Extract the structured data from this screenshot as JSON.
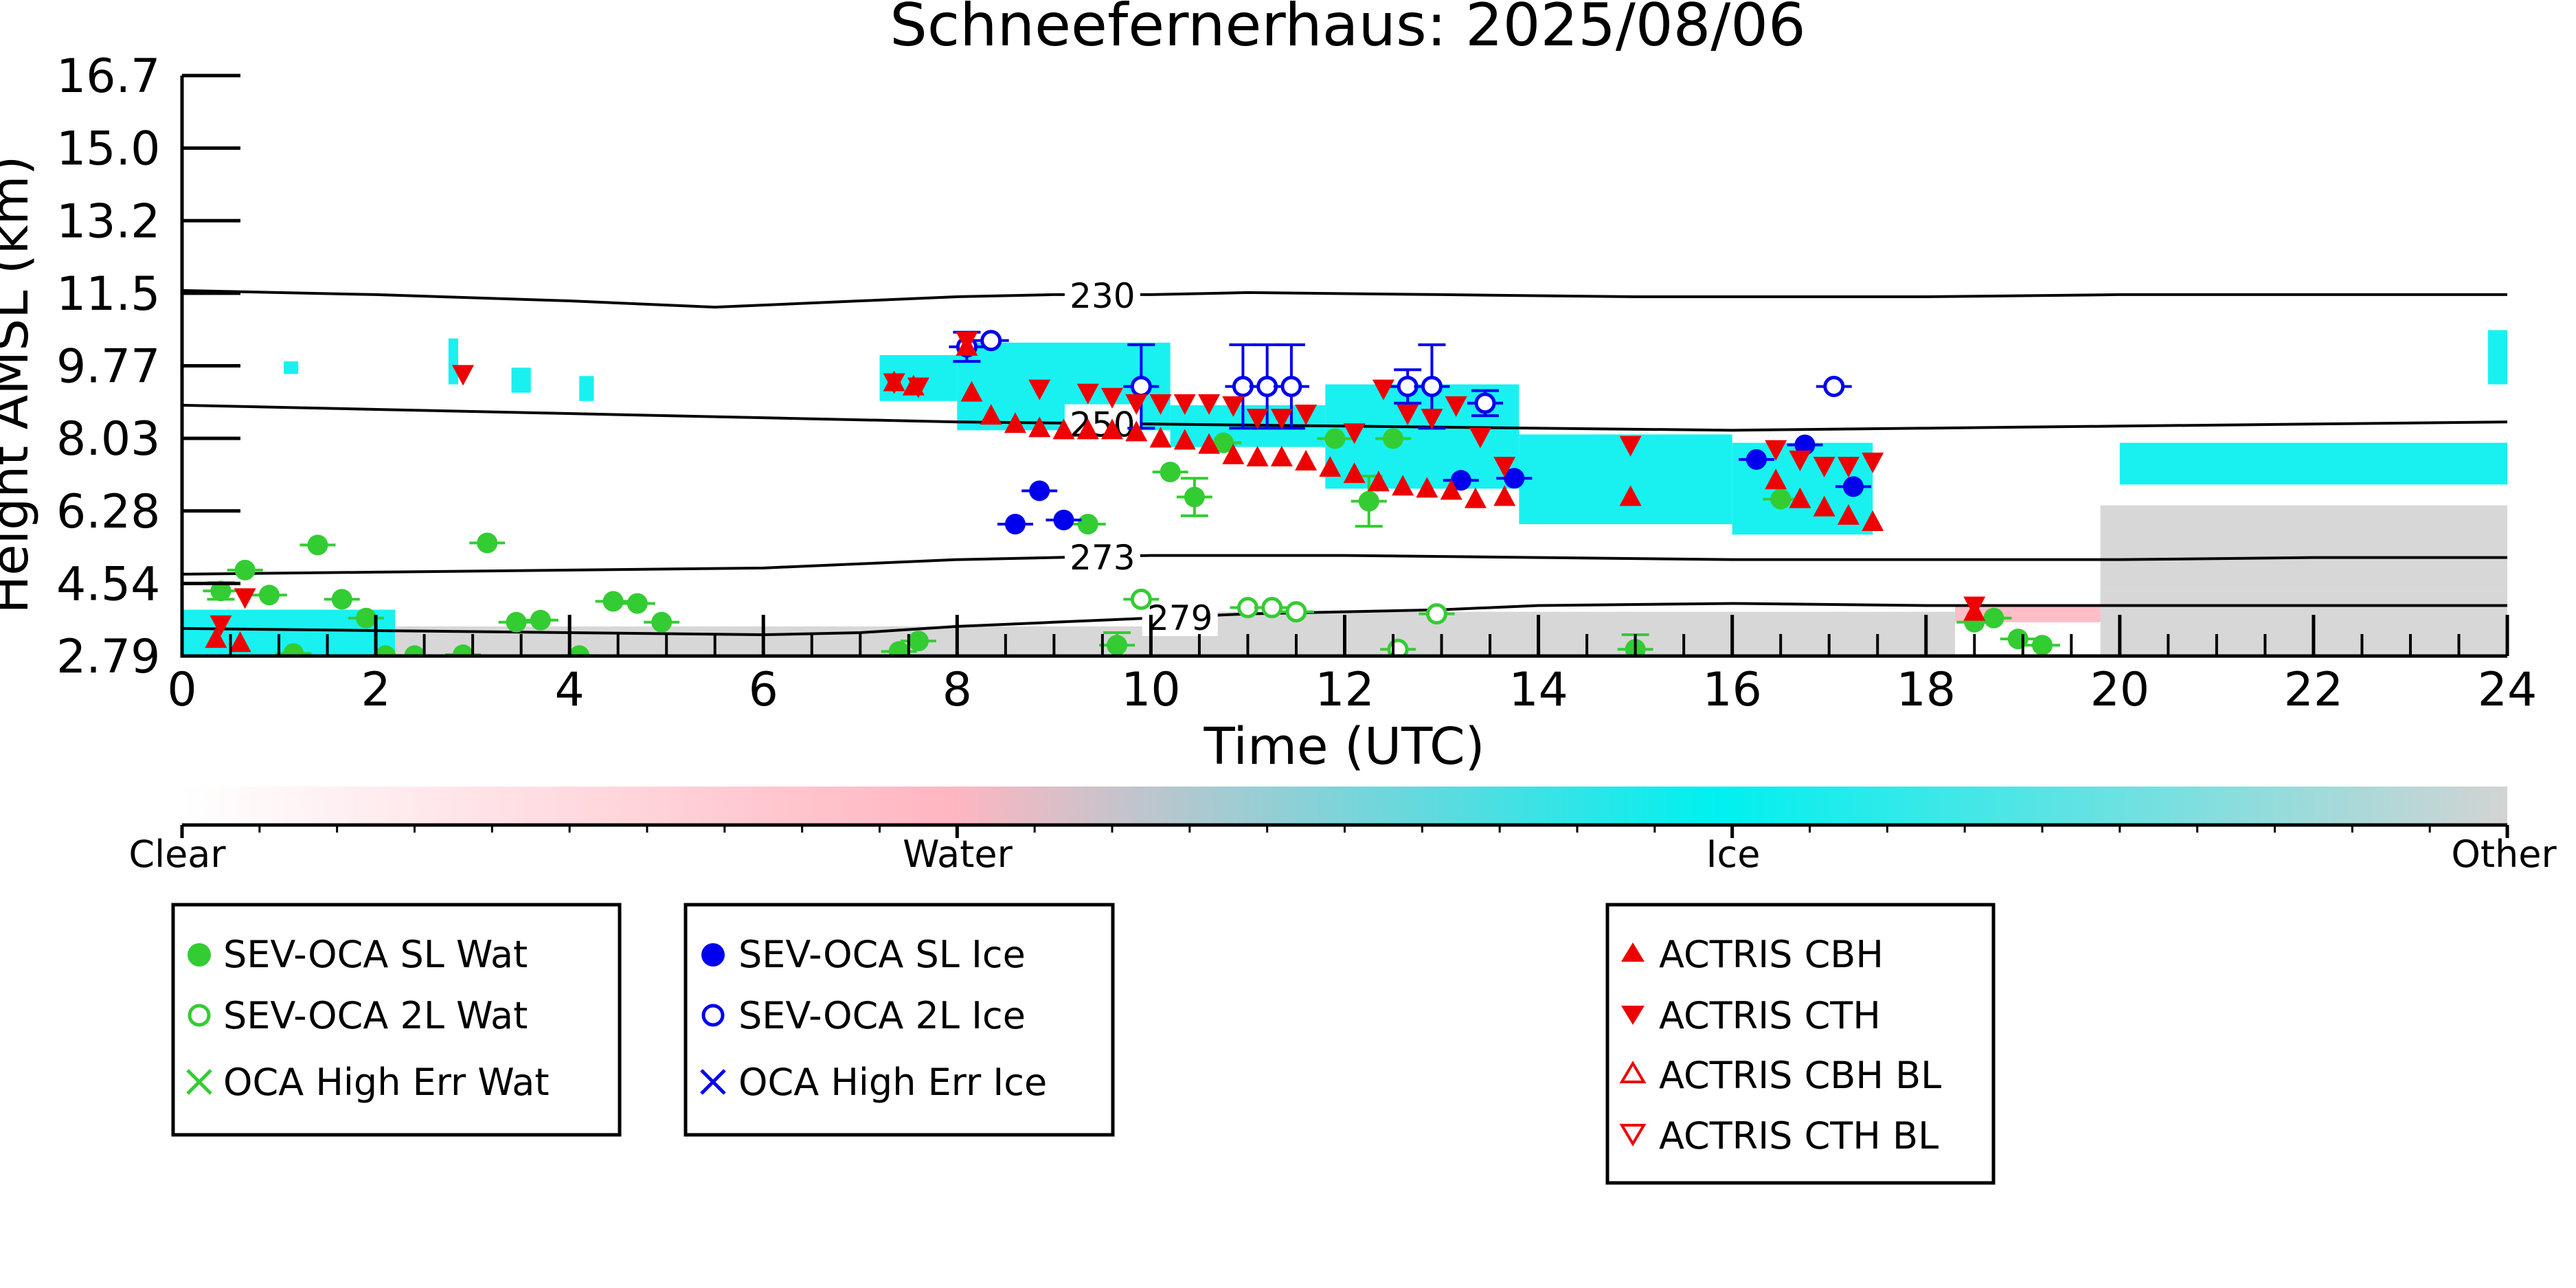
{
  "chart_data": {
    "type": "scatter",
    "title": "Schneefernerhaus: 2025/08/06",
    "xlabel": "Time (UTC)",
    "ylabel": "Height AMSL (km)",
    "xlim": [
      0,
      24
    ],
    "ylim": [
      2.79,
      16.7
    ],
    "x_ticks": [
      "0",
      "2",
      "4",
      "6",
      "8",
      "10",
      "12",
      "14",
      "16",
      "18",
      "20",
      "22",
      "24"
    ],
    "y_ticks": [
      "2.79",
      "4.54",
      "6.28",
      "8.03",
      "9.77",
      "11.5",
      "13.2",
      "15.0",
      "16.7"
    ],
    "grid": false,
    "contours": [
      {
        "label": "230",
        "label_x": 9.5,
        "points": [
          [
            0,
            11.55
          ],
          [
            2,
            11.45
          ],
          [
            4,
            11.3
          ],
          [
            5,
            11.2
          ],
          [
            5.5,
            11.15
          ],
          [
            7,
            11.3
          ],
          [
            8,
            11.4
          ],
          [
            9,
            11.45
          ],
          [
            10,
            11.45
          ],
          [
            11,
            11.5
          ],
          [
            13,
            11.45
          ],
          [
            15,
            11.4
          ],
          [
            18,
            11.4
          ],
          [
            20,
            11.45
          ],
          [
            24,
            11.45
          ]
        ]
      },
      {
        "label": "250",
        "label_x": 9.5,
        "points": [
          [
            0,
            8.8
          ],
          [
            2,
            8.7
          ],
          [
            4,
            8.6
          ],
          [
            6,
            8.5
          ],
          [
            8,
            8.4
          ],
          [
            10,
            8.35
          ],
          [
            12,
            8.3
          ],
          [
            14,
            8.25
          ],
          [
            16,
            8.2
          ],
          [
            18,
            8.25
          ],
          [
            20,
            8.3
          ],
          [
            22,
            8.35
          ],
          [
            24,
            8.4
          ]
        ]
      },
      {
        "label": "273",
        "label_x": 9.5,
        "points": [
          [
            0,
            4.75
          ],
          [
            2,
            4.8
          ],
          [
            4,
            4.85
          ],
          [
            6,
            4.9
          ],
          [
            7,
            5.0
          ],
          [
            8,
            5.1
          ],
          [
            9,
            5.15
          ],
          [
            10,
            5.2
          ],
          [
            12,
            5.2
          ],
          [
            14,
            5.15
          ],
          [
            16,
            5.1
          ],
          [
            18,
            5.1
          ],
          [
            20,
            5.1
          ],
          [
            22,
            5.15
          ],
          [
            24,
            5.15
          ]
        ]
      },
      {
        "label": "279",
        "label_x": 10.3,
        "points": [
          [
            0,
            3.45
          ],
          [
            2,
            3.4
          ],
          [
            4,
            3.35
          ],
          [
            6,
            3.3
          ],
          [
            7,
            3.35
          ],
          [
            8,
            3.5
          ],
          [
            9,
            3.6
          ],
          [
            10,
            3.7
          ],
          [
            11,
            3.8
          ],
          [
            12,
            3.85
          ],
          [
            13,
            3.9
          ],
          [
            14,
            4.0
          ],
          [
            16,
            4.05
          ],
          [
            18,
            4.0
          ],
          [
            20,
            4.0
          ],
          [
            22,
            4.0
          ],
          [
            24,
            4.0
          ]
        ]
      }
    ],
    "categorize_colorbar": {
      "labels": [
        "Clear",
        "Water",
        "Ice",
        "Other"
      ],
      "colors": [
        "#ffffff",
        "#ffb6c1",
        "#00f0f0",
        "#d3d3d3"
      ]
    },
    "legends": [
      {
        "entries": [
          {
            "label": "SEV-OCA SL Wat",
            "marker": "filled-circle",
            "color": "#33cc33"
          },
          {
            "label": "SEV-OCA 2L Wat",
            "marker": "open-circle",
            "color": "#33cc33"
          },
          {
            "label": "OCA High Err Wat",
            "marker": "x",
            "color": "#33cc33"
          }
        ]
      },
      {
        "entries": [
          {
            "label": "SEV-OCA SL Ice",
            "marker": "filled-circle",
            "color": "#0000ee"
          },
          {
            "label": "SEV-OCA 2L Ice",
            "marker": "open-circle",
            "color": "#0000ee"
          },
          {
            "label": "OCA High Err Ice",
            "marker": "x",
            "color": "#0000ee"
          }
        ]
      },
      {
        "entries": [
          {
            "label": "ACTRIS CBH",
            "marker": "triangle-up",
            "color": "#ee0000"
          },
          {
            "label": "ACTRIS CTH",
            "marker": "triangle-down",
            "color": "#ee0000"
          },
          {
            "label": "ACTRIS CBH BL",
            "marker": "open-triangle-up",
            "color": "#ee0000"
          },
          {
            "label": "ACTRIS CTH BL",
            "marker": "open-triangle-down",
            "color": "#ee0000"
          }
        ]
      }
    ],
    "series": [
      {
        "name": "SEV-OCA SL Wat",
        "marker": "filled-circle",
        "color": "#33cc33",
        "points": [
          [
            0.4,
            4.35
          ],
          [
            0.65,
            4.85
          ],
          [
            0.9,
            4.25
          ],
          [
            1.15,
            2.85
          ],
          [
            1.4,
            5.45
          ],
          [
            1.65,
            4.15
          ],
          [
            1.9,
            3.7
          ],
          [
            2.1,
            2.8
          ],
          [
            2.4,
            2.8
          ],
          [
            2.9,
            2.82
          ],
          [
            3.15,
            5.5
          ],
          [
            3.45,
            3.6
          ],
          [
            3.7,
            3.65
          ],
          [
            4.1,
            2.8
          ],
          [
            4.45,
            4.1
          ],
          [
            4.7,
            4.05
          ],
          [
            4.95,
            3.6
          ],
          [
            7.4,
            2.9
          ],
          [
            7.6,
            3.15
          ],
          [
            9.35,
            5.95
          ],
          [
            9.65,
            3.05
          ],
          [
            10.2,
            7.2
          ],
          [
            10.45,
            6.6
          ],
          [
            10.75,
            7.9
          ],
          [
            11.9,
            8.0
          ],
          [
            12.25,
            6.5
          ],
          [
            12.5,
            8.0
          ],
          [
            15,
            2.95
          ],
          [
            16.5,
            6.55
          ],
          [
            18.5,
            3.6
          ],
          [
            18.7,
            3.7
          ],
          [
            18.95,
            3.2
          ],
          [
            19.2,
            3.05
          ]
        ],
        "errors": [
          [
            0.4,
            4.35,
            0.2
          ],
          [
            9.65,
            3.05,
            0.3
          ],
          [
            10.45,
            6.6,
            0.45
          ],
          [
            12.25,
            6.5,
            0.6
          ],
          [
            15,
            2.95,
            0.35
          ]
        ]
      },
      {
        "name": "SEV-OCA 2L Wat",
        "marker": "open-circle",
        "color": "#33cc33",
        "points": [
          [
            9.9,
            4.15
          ],
          [
            11,
            3.95
          ],
          [
            11.25,
            3.95
          ],
          [
            11.5,
            3.85
          ],
          [
            12.55,
            2.95
          ],
          [
            12.95,
            3.8
          ]
        ]
      },
      {
        "name": "OCA High Err Wat",
        "marker": "x",
        "color": "#33cc33",
        "points": []
      },
      {
        "name": "SEV-OCA SL Ice",
        "marker": "filled-circle",
        "color": "#0000ee",
        "points": [
          [
            8.6,
            5.95
          ],
          [
            8.85,
            6.75
          ],
          [
            9.1,
            6.05
          ],
          [
            13.2,
            7.0
          ],
          [
            13.75,
            7.05
          ],
          [
            16.25,
            7.5
          ],
          [
            16.75,
            7.85
          ],
          [
            17.25,
            6.85
          ]
        ]
      },
      {
        "name": "SEV-OCA 2L Ice",
        "marker": "open-circle",
        "color": "#0000ee",
        "points": [
          [
            8.1,
            10.2
          ],
          [
            8.35,
            10.35
          ],
          [
            9.9,
            9.25
          ],
          [
            10.95,
            9.25
          ],
          [
            11.2,
            9.25
          ],
          [
            11.45,
            9.25
          ],
          [
            12.65,
            9.25
          ],
          [
            12.9,
            9.25
          ],
          [
            13.45,
            8.85
          ],
          [
            17.05,
            9.25
          ]
        ],
        "errors": [
          [
            8.1,
            10.2,
            0.35
          ],
          [
            9.9,
            9.25,
            1.0
          ],
          [
            10.95,
            9.25,
            1.0
          ],
          [
            11.2,
            9.25,
            1.0
          ],
          [
            11.45,
            9.25,
            1.0
          ],
          [
            12.65,
            9.25,
            0.4
          ],
          [
            12.9,
            9.25,
            1.0
          ],
          [
            13.45,
            8.85,
            0.3
          ]
        ]
      },
      {
        "name": "OCA High Err Ice",
        "marker": "x",
        "color": "#0000ee",
        "points": []
      },
      {
        "name": "ACTRIS CBH",
        "marker": "triangle-up",
        "color": "#ee0000",
        "points": [
          [
            0.35,
            3.2
          ],
          [
            0.6,
            3.1
          ],
          [
            7.35,
            9.35
          ],
          [
            7.55,
            9.25
          ],
          [
            8.1,
            10.2
          ],
          [
            8.15,
            9.1
          ],
          [
            8.35,
            8.55
          ],
          [
            8.6,
            8.35
          ],
          [
            8.85,
            8.25
          ],
          [
            9.1,
            8.2
          ],
          [
            9.35,
            8.2
          ],
          [
            9.6,
            8.2
          ],
          [
            9.85,
            8.15
          ],
          [
            10.1,
            8.0
          ],
          [
            10.35,
            7.95
          ],
          [
            10.6,
            7.85
          ],
          [
            10.85,
            7.6
          ],
          [
            11.1,
            7.55
          ],
          [
            11.35,
            7.55
          ],
          [
            11.6,
            7.45
          ],
          [
            11.85,
            7.3
          ],
          [
            12.1,
            7.15
          ],
          [
            12.35,
            6.95
          ],
          [
            12.6,
            6.85
          ],
          [
            12.85,
            6.8
          ],
          [
            13.1,
            6.75
          ],
          [
            13.35,
            6.55
          ],
          [
            13.65,
            6.6
          ],
          [
            14.95,
            6.6
          ],
          [
            16.45,
            7.0
          ],
          [
            16.7,
            6.55
          ],
          [
            16.95,
            6.35
          ],
          [
            17.2,
            6.15
          ],
          [
            17.45,
            6.0
          ],
          [
            18.5,
            3.85
          ]
        ]
      },
      {
        "name": "ACTRIS CTH",
        "marker": "triangle-down",
        "color": "#ee0000",
        "points": [
          [
            0.4,
            3.55
          ],
          [
            0.65,
            4.2
          ],
          [
            2.9,
            9.55
          ],
          [
            7.35,
            9.35
          ],
          [
            7.6,
            9.25
          ],
          [
            8.1,
            10.35
          ],
          [
            8.85,
            9.2
          ],
          [
            9.35,
            9.1
          ],
          [
            9.6,
            9.0
          ],
          [
            9.85,
            8.85
          ],
          [
            10.1,
            8.85
          ],
          [
            10.35,
            8.85
          ],
          [
            10.6,
            8.85
          ],
          [
            10.85,
            8.8
          ],
          [
            11.1,
            8.5
          ],
          [
            11.35,
            8.5
          ],
          [
            11.6,
            8.6
          ],
          [
            12.1,
            8.15
          ],
          [
            12.4,
            9.2
          ],
          [
            12.65,
            8.6
          ],
          [
            12.9,
            8.5
          ],
          [
            13.15,
            8.8
          ],
          [
            13.4,
            8.05
          ],
          [
            13.65,
            7.35
          ],
          [
            14.95,
            7.85
          ],
          [
            16.45,
            7.75
          ],
          [
            16.7,
            7.5
          ],
          [
            16.95,
            7.35
          ],
          [
            17.2,
            7.35
          ],
          [
            17.45,
            7.45
          ],
          [
            18.5,
            4.0
          ]
        ]
      },
      {
        "name": "ACTRIS CBH BL",
        "marker": "open-triangle-up",
        "color": "#ee0000",
        "points": []
      },
      {
        "name": "ACTRIS CTH BL",
        "marker": "open-triangle-down",
        "color": "#ee0000",
        "points": []
      }
    ],
    "regions": [
      {
        "category": "Ice",
        "color": "#00f0f0",
        "x": [
          1.05,
          1.2
        ],
        "y": [
          9.55,
          9.85
        ]
      },
      {
        "category": "Ice",
        "color": "#00f0f0",
        "x": [
          2.75,
          2.85
        ],
        "y": [
          9.3,
          10.4
        ]
      },
      {
        "category": "Ice",
        "color": "#00f0f0",
        "x": [
          3.4,
          3.6
        ],
        "y": [
          9.1,
          9.7
        ]
      },
      {
        "category": "Ice",
        "color": "#00f0f0",
        "x": [
          4.1,
          4.25
        ],
        "y": [
          8.9,
          9.5
        ]
      },
      {
        "category": "Ice",
        "color": "#00f0f0",
        "x": [
          7.2,
          8.0
        ],
        "y": [
          8.9,
          10.0
        ]
      },
      {
        "category": "Ice",
        "color": "#00f0f0",
        "x": [
          8.0,
          10.2
        ],
        "y": [
          8.2,
          10.3
        ]
      },
      {
        "category": "Ice",
        "color": "#00f0f0",
        "x": [
          10.2,
          11.8
        ],
        "y": [
          7.8,
          8.8
        ]
      },
      {
        "category": "Ice",
        "color": "#00f0f0",
        "x": [
          11.8,
          13.8
        ],
        "y": [
          6.8,
          9.3
        ]
      },
      {
        "category": "Ice",
        "color": "#00f0f0",
        "x": [
          13.8,
          16.0
        ],
        "y": [
          5.95,
          8.1
        ]
      },
      {
        "category": "Ice",
        "color": "#00f0f0",
        "x": [
          16.0,
          17.45
        ],
        "y": [
          5.7,
          7.9
        ]
      },
      {
        "category": "Ice",
        "color": "#00f0f0",
        "x": [
          20.0,
          24.0
        ],
        "y": [
          6.9,
          7.9
        ]
      },
      {
        "category": "Ice",
        "color": "#00f0f0",
        "x": [
          23.8,
          24.0
        ],
        "y": [
          9.3,
          10.6
        ]
      },
      {
        "category": "Ice",
        "color": "#00f0f0",
        "x": [
          0.0,
          2.2
        ],
        "y": [
          2.79,
          3.9
        ]
      },
      {
        "category": "Other",
        "color": "#d3d3d3",
        "x": [
          2.2,
          10.0
        ],
        "y": [
          2.79,
          3.5
        ]
      },
      {
        "category": "Other",
        "color": "#d3d3d3",
        "x": [
          10.0,
          18.3
        ],
        "y": [
          2.79,
          3.85
        ]
      },
      {
        "category": "Water",
        "color": "#ffb6c1",
        "x": [
          18.3,
          19.8
        ],
        "y": [
          3.6,
          4.0
        ]
      },
      {
        "category": "Other",
        "color": "#d3d3d3",
        "x": [
          19.8,
          24.0
        ],
        "y": [
          2.79,
          4.35
        ]
      },
      {
        "category": "Other",
        "color": "#d3d3d3",
        "x": [
          19.8,
          24.0
        ],
        "y": [
          4.35,
          6.4
        ]
      }
    ]
  }
}
